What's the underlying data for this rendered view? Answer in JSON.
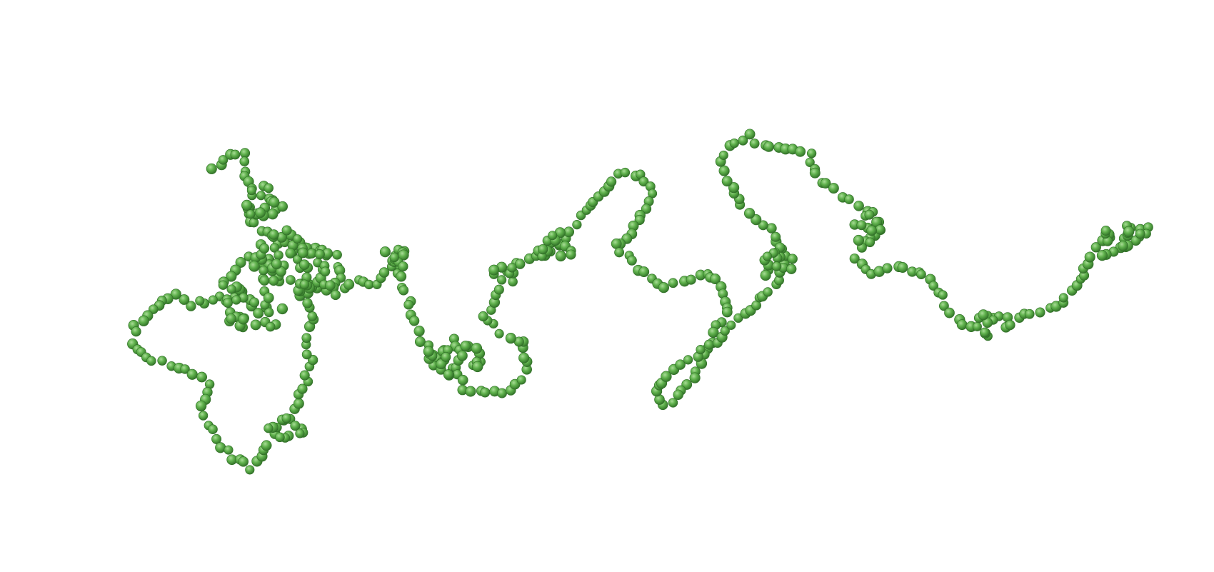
{
  "scene": {
    "subject": "bead-chain",
    "bead_color": "#5fb14c",
    "bead_shadow_color": "#2f6e26",
    "bead_highlight_color": "#a9dc97",
    "background_color": "#ffffff"
  }
}
